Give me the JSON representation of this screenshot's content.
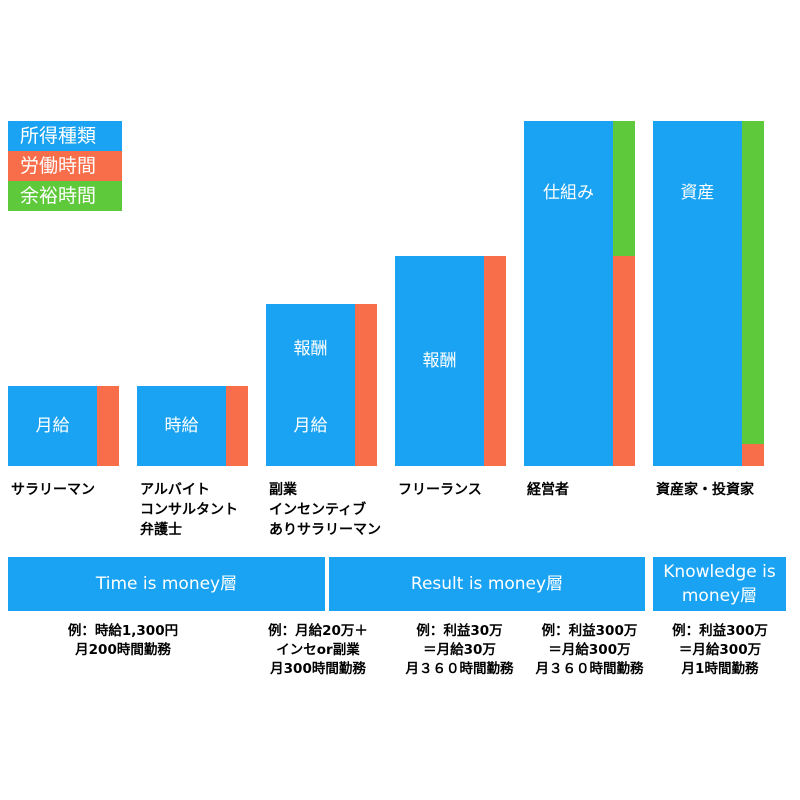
{
  "colors": {
    "income_type": "#1aa3f2",
    "labor_time": "#f86d4a",
    "spare_time": "#5ec93a"
  },
  "legend": [
    {
      "label": "所得種類",
      "color": "#1aa3f2"
    },
    {
      "label": "労働時間",
      "color": "#f86d4a"
    },
    {
      "label": "余裕時間",
      "color": "#5ec93a"
    }
  ],
  "chart_data": {
    "type": "bar",
    "title": "",
    "categories": [
      [
        "サラリーマン"
      ],
      [
        "アルバイト",
        "コンサルタント",
        "弁護士"
      ],
      [
        "副業",
        "インセンティブ",
        "ありサラリーマン"
      ],
      [
        "フリーランス"
      ],
      [
        "経営者"
      ],
      [
        "資産家・投資家"
      ]
    ],
    "income_labels": [
      [
        "月給"
      ],
      [
        "時給"
      ],
      [
        "報酬",
        "月給"
      ],
      [
        "報酬"
      ],
      [
        "仕組み"
      ],
      [
        "資産"
      ]
    ],
    "income_height": [
      80,
      80,
      162,
      210,
      345,
      345
    ],
    "labor_height": [
      80,
      80,
      162,
      210,
      210,
      22
    ],
    "spare_height": [
      0,
      0,
      0,
      0,
      135,
      323
    ],
    "legend_position": "top-left",
    "grid": false
  },
  "layers": [
    {
      "lines": [
        "Time is money層"
      ]
    },
    {
      "lines": [
        "Result is money層"
      ]
    },
    {
      "lines": [
        "Knowledge is",
        "money層"
      ]
    }
  ],
  "examples": [
    {
      "lines": [
        "例：時給1,300円",
        "月200時間勤務"
      ]
    },
    {
      "lines": [
        "例：月給20万＋",
        "インセor副業",
        "月300時間勤務"
      ]
    },
    {
      "lines": [
        "例：利益30万",
        "＝月給30万",
        "月３６０時間勤務"
      ]
    },
    {
      "lines": [
        "例：利益300万",
        "＝月給300万",
        "月３６０時間勤務"
      ]
    },
    {
      "lines": [
        "例：利益300万",
        "＝月給300万",
        "月1時間勤務"
      ]
    }
  ]
}
